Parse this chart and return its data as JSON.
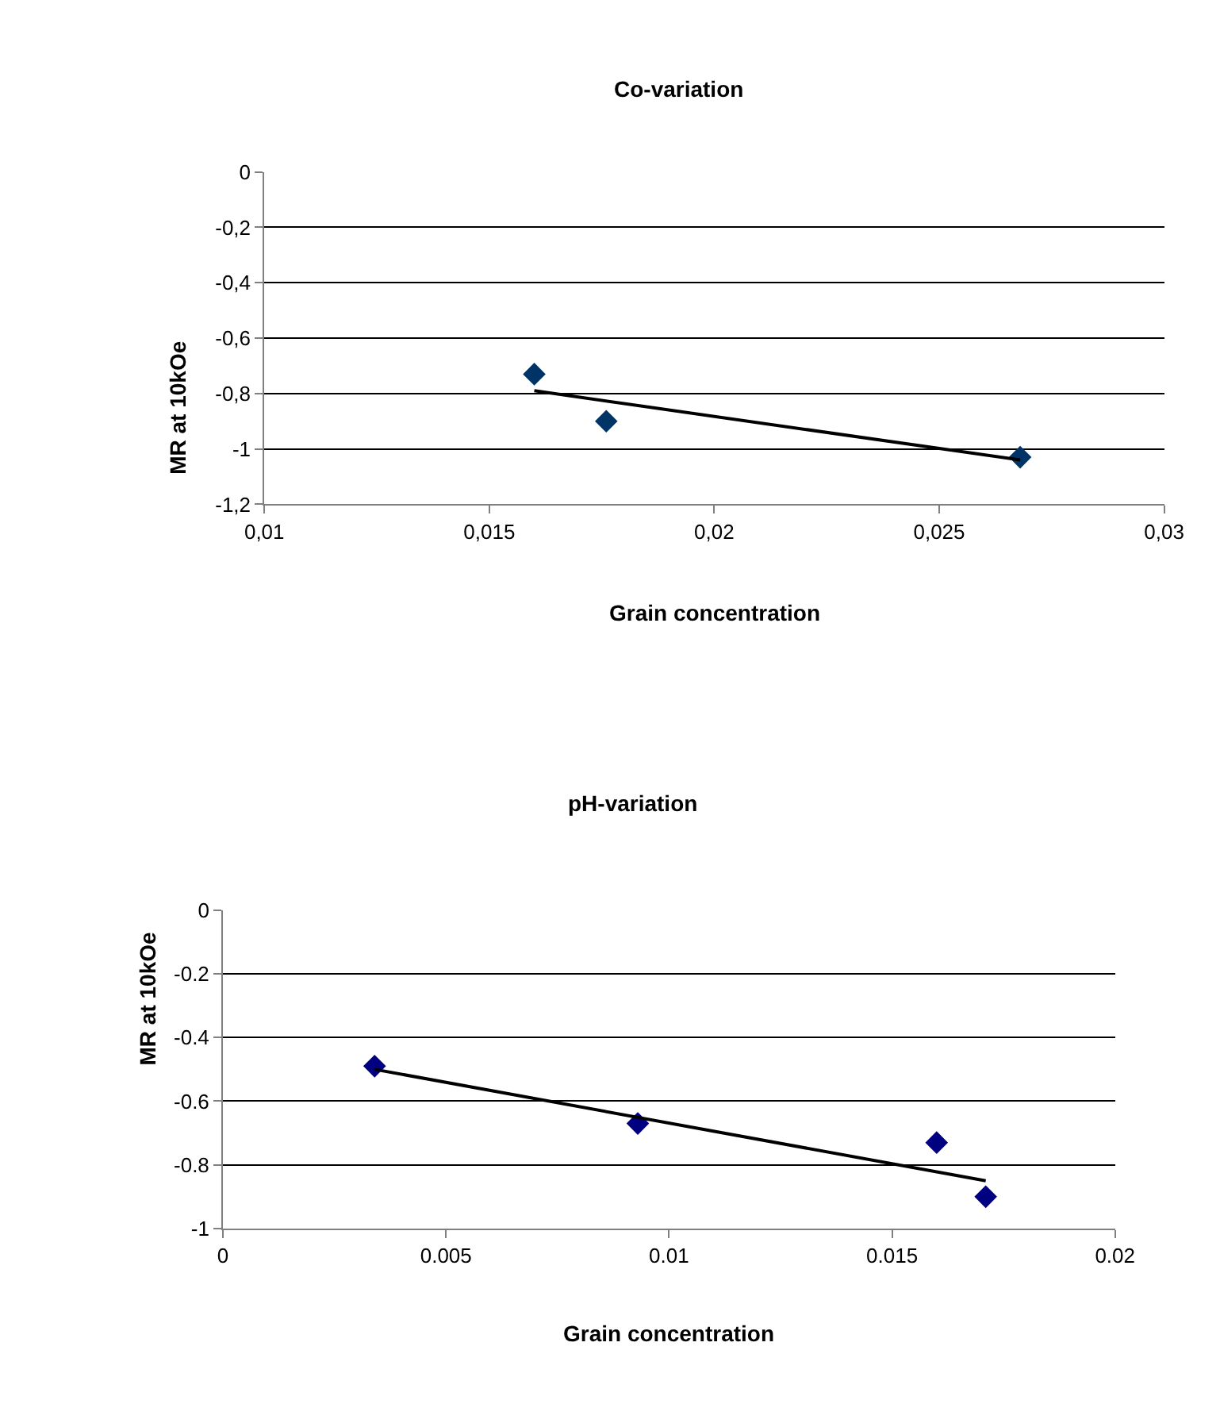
{
  "chart_data": [
    {
      "type": "scatter",
      "title": "Co-variation",
      "xlabel": "Grain concentration",
      "ylabel": "MR at 10kOe",
      "grid": "y",
      "xlim": [
        0.01,
        0.03
      ],
      "xticks": [
        {
          "value": 0.01,
          "label": "0,01"
        },
        {
          "value": 0.015,
          "label": "0,015"
        },
        {
          "value": 0.02,
          "label": "0,02"
        },
        {
          "value": 0.025,
          "label": "0,025"
        },
        {
          "value": 0.03,
          "label": "0,03"
        }
      ],
      "ylim": [
        -1.2,
        0
      ],
      "yticks": [
        {
          "value": -1.2,
          "label": "-1,2"
        },
        -1,
        {
          "value": -0.8,
          "label": "-0,8"
        },
        {
          "value": -0.6,
          "label": "-0,6"
        },
        {
          "value": -0.4,
          "label": "-0,4"
        },
        {
          "value": -0.2,
          "label": "-0,2"
        },
        0
      ],
      "series": [
        {
          "color": "#003366",
          "marker": "diamond",
          "x": [
            0.016,
            0.0176,
            0.0268
          ],
          "values": [
            -0.73,
            -0.9,
            -1.03
          ]
        },
        {
          "type": "line",
          "marker": "none",
          "color": "#000000",
          "x": [
            0.016,
            0.0268
          ],
          "values": [
            -0.79,
            -1.04
          ]
        }
      ]
    },
    {
      "type": "scatter",
      "title": "pH-variation",
      "xlabel": "Grain concentration",
      "ylabel": "MR at 10kOe",
      "grid": "y",
      "xlim": [
        0,
        0.02
      ],
      "xticks": [
        0,
        0.005,
        0.01,
        0.015,
        0.02
      ],
      "ylim": [
        -1,
        0
      ],
      "yticks": [
        -1,
        -0.8,
        -0.6,
        -0.4,
        -0.2,
        0
      ],
      "series": [
        {
          "color": "#000080",
          "marker": "diamond",
          "x": [
            0.0034,
            0.0093,
            0.016,
            0.0171
          ],
          "values": [
            -0.49,
            -0.67,
            -0.73,
            -0.9
          ]
        },
        {
          "type": "line",
          "marker": "none",
          "color": "#000000",
          "x": [
            0.0034,
            0.0171
          ],
          "values": [
            -0.5,
            -0.85
          ]
        }
      ]
    }
  ]
}
